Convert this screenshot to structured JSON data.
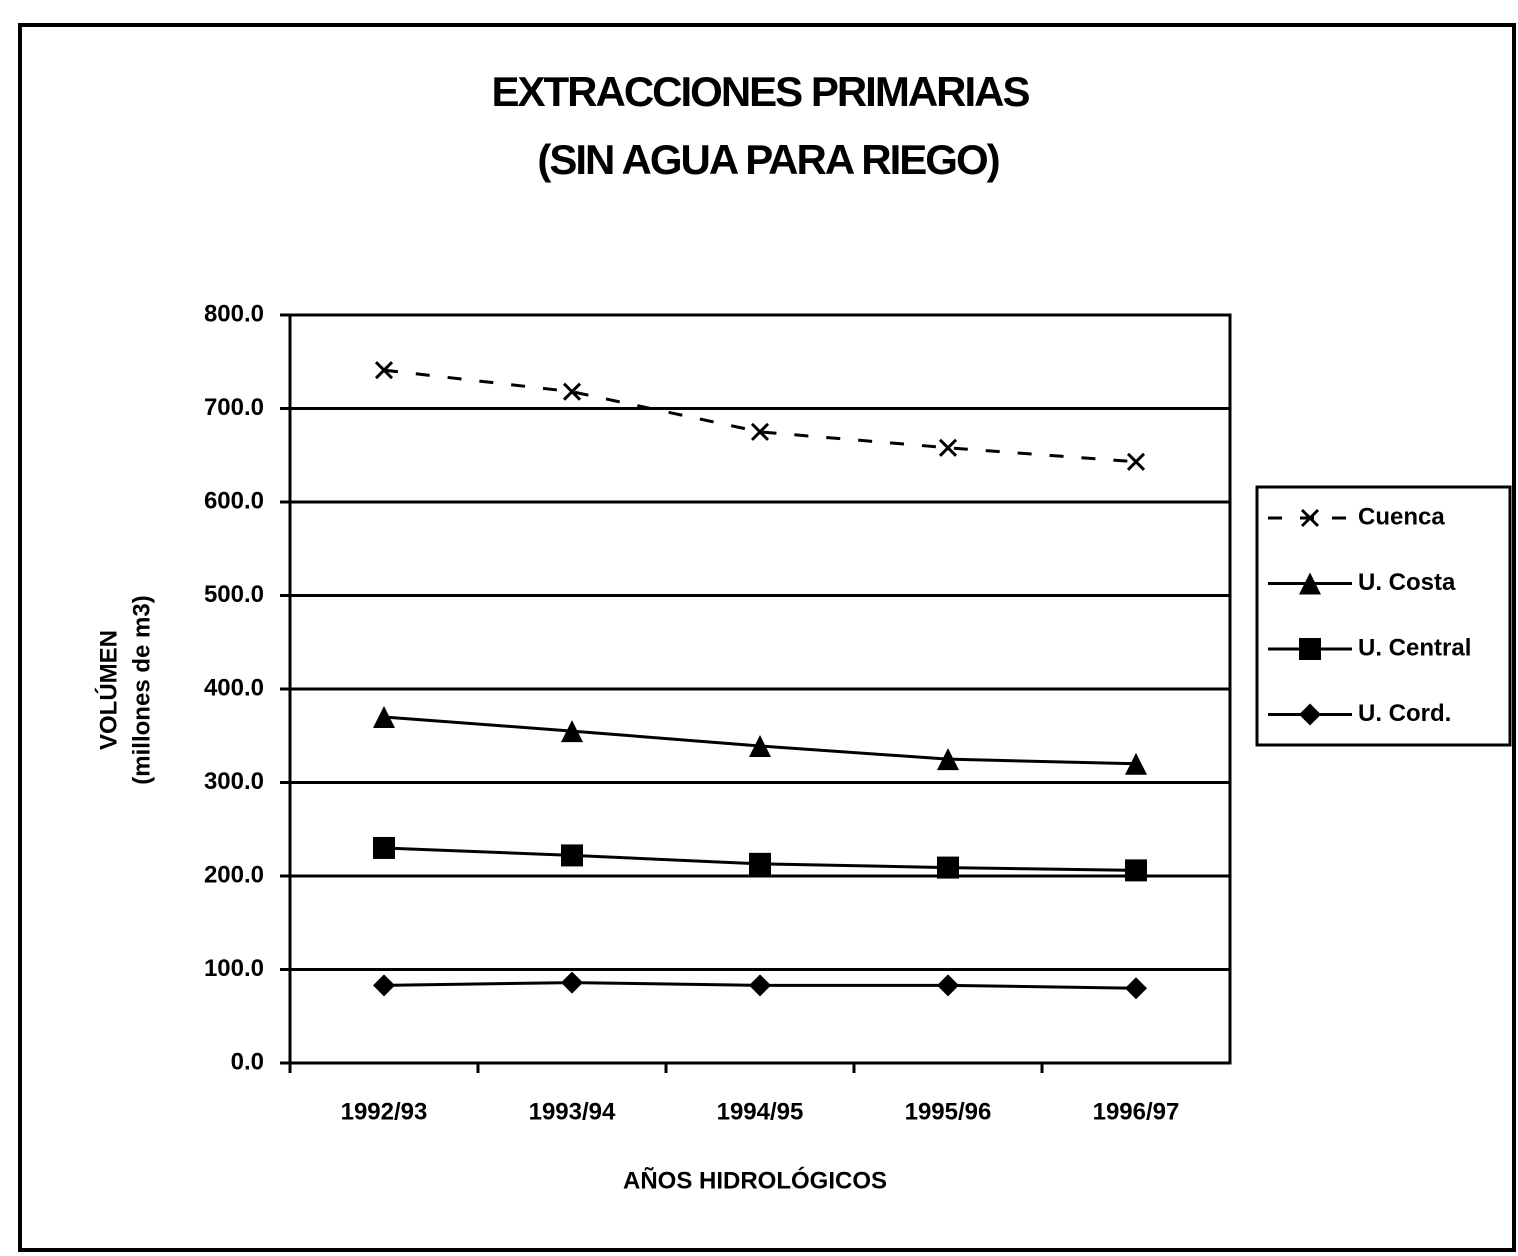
{
  "chart_data": {
    "type": "line",
    "title": [
      "EXTRACCIONES PRIMARIAS",
      "(SIN AGUA PARA RIEGO)"
    ],
    "xlabel": "AÑOS HIDROLÓGICOS",
    "ylabel": [
      "VOLÚMEN",
      "(millones de m3)"
    ],
    "categories": [
      "1992/93",
      "1993/94",
      "1994/95",
      "1995/96",
      "1996/97"
    ],
    "series": [
      {
        "name": "Cuenca",
        "color": "#000000",
        "marker": "x",
        "style": "dashed",
        "values": [
          741,
          718,
          675,
          658,
          643
        ]
      },
      {
        "name": "U. Costa",
        "color": "#000000",
        "marker": "triangle",
        "style": "solid",
        "values": [
          370,
          355,
          339,
          325,
          320
        ]
      },
      {
        "name": "U. Central",
        "color": "#000000",
        "marker": "square",
        "style": "solid",
        "values": [
          230,
          222,
          213,
          209,
          206
        ]
      },
      {
        "name": "U. Cord.",
        "color": "#000000",
        "marker": "diamond",
        "style": "solid",
        "values": [
          83,
          86,
          83,
          83,
          80
        ]
      }
    ],
    "ylim": [
      0,
      800
    ],
    "yticks": [
      {
        "value": 0,
        "label": "0.0"
      },
      {
        "value": 100,
        "label": "100.0"
      },
      {
        "value": 200,
        "label": "200.0"
      },
      {
        "value": 300,
        "label": "300.0"
      },
      {
        "value": 400,
        "label": "400.0"
      },
      {
        "value": 500,
        "label": "500.0"
      },
      {
        "value": 600,
        "label": "600.0"
      },
      {
        "value": 700,
        "label": "700.0"
      },
      {
        "value": 800,
        "label": "800.0"
      }
    ],
    "grid": true,
    "legend": "right"
  }
}
